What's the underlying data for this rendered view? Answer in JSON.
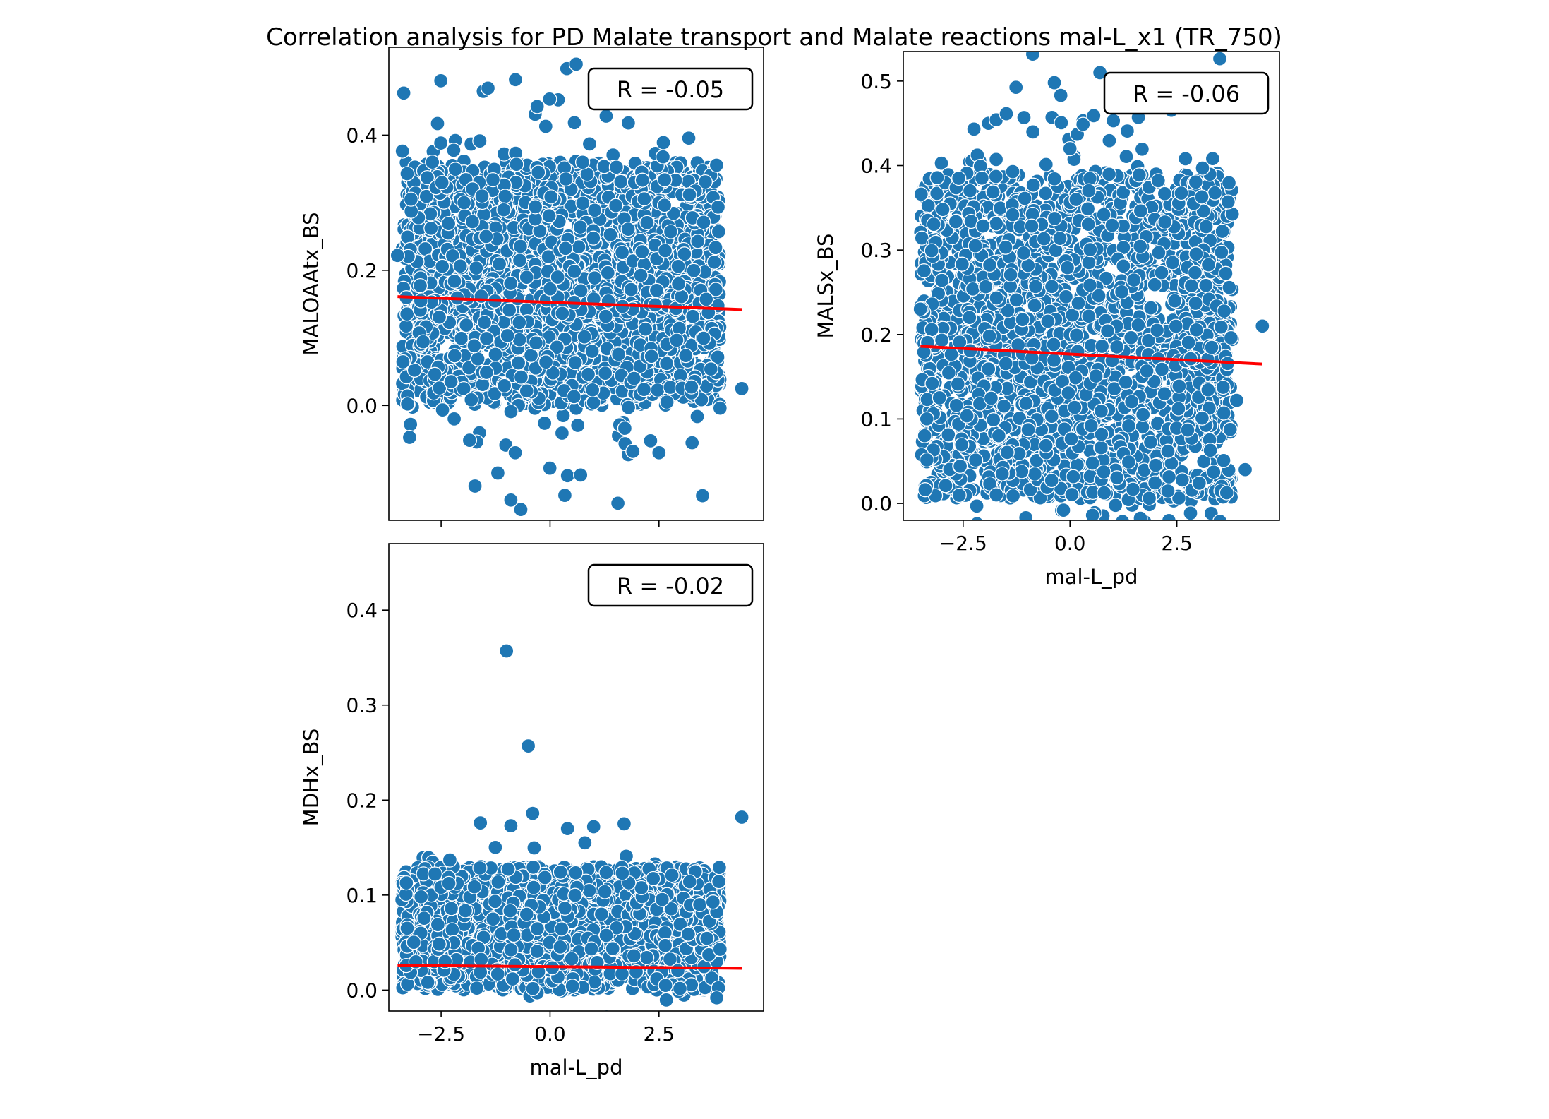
{
  "figure": {
    "title": "Correlation analysis for PD Malate transport and  Malate reactions mal-L_x1 (TR_750)"
  },
  "colors": {
    "points": "#1f77b4",
    "point_edge": "#ffffff",
    "fit_line": "#ff0000",
    "axes": "#000000"
  },
  "chart_data": [
    {
      "type": "scatter",
      "panel": "top-left",
      "title": "",
      "xlabel": "",
      "ylabel": "MALOAAtx_BS",
      "xlim": [
        -3.7,
        4.9
      ],
      "ylim": [
        -0.17,
        0.53
      ],
      "xticks": [
        -2.5,
        0.0,
        2.5
      ],
      "xtick_labels": [
        "−2.5",
        "0.0",
        "2.5"
      ],
      "yticks": [
        0.0,
        0.2,
        0.4
      ],
      "ytick_labels": [
        "0.0",
        "0.2",
        "0.4"
      ],
      "annotation": "R = -0.05",
      "fit_line": {
        "x": [
          -3.5,
          4.4
        ],
        "y": [
          0.161,
          0.142
        ]
      },
      "distribution": {
        "x_min": -3.4,
        "x_max": 3.9,
        "y_low": 0.0,
        "y_high": 0.36,
        "y_spread": 0.07,
        "count": 2600,
        "seed": 11
      },
      "points": [
        {
          "x": 0.6,
          "y": 0.505
        },
        {
          "x": 1.5,
          "y": 0.455
        },
        {
          "x": -0.1,
          "y": 0.413
        },
        {
          "x": 2.6,
          "y": 0.389
        },
        {
          "x": -2.7,
          "y": 0.36
        },
        {
          "x": -1.2,
          "y": -0.1
        },
        {
          "x": -0.9,
          "y": -0.14
        },
        {
          "x": 0.4,
          "y": -0.104
        },
        {
          "x": 0.7,
          "y": -0.103
        },
        {
          "x": 4.4,
          "y": 0.025
        },
        {
          "x": 3.9,
          "y": -0.004
        },
        {
          "x": -3.5,
          "y": 0.222
        },
        {
          "x": 2.5,
          "y": -0.07
        },
        {
          "x": 1.9,
          "y": -0.068
        },
        {
          "x": -0.8,
          "y": -0.07
        },
        {
          "x": 3.2,
          "y": 0.312
        },
        {
          "x": -2.2,
          "y": -0.02
        }
      ]
    },
    {
      "type": "scatter",
      "panel": "top-right",
      "title": "",
      "xlabel": "mal-L_pd",
      "ylabel": "MALSx_BS",
      "xlim": [
        -3.9,
        4.9
      ],
      "ylim": [
        -0.02,
        0.535
      ],
      "xticks": [
        -2.5,
        0.0,
        2.5
      ],
      "xtick_labels": [
        "−2.5",
        "0.0",
        "2.5"
      ],
      "yticks": [
        0.0,
        0.1,
        0.2,
        0.3,
        0.4,
        0.5
      ],
      "ytick_labels": [
        "0.0",
        "0.1",
        "0.2",
        "0.3",
        "0.4",
        "0.5"
      ],
      "annotation": "R = -0.06",
      "fit_line": {
        "x": [
          -3.5,
          4.5
        ],
        "y": [
          0.186,
          0.165
        ]
      },
      "distribution": {
        "x_min": -3.5,
        "x_max": 3.8,
        "y_low": 0.005,
        "y_high": 0.39,
        "y_spread": 0.08,
        "count": 2600,
        "seed": 23
      },
      "points": [
        {
          "x": 0.7,
          "y": 0.51
        },
        {
          "x": 1.6,
          "y": 0.457
        },
        {
          "x": 0.0,
          "y": 0.42
        },
        {
          "x": -3.5,
          "y": 0.23
        },
        {
          "x": 4.5,
          "y": 0.21
        },
        {
          "x": 3.9,
          "y": 0.122
        },
        {
          "x": 3.7,
          "y": 0.357
        },
        {
          "x": 3.1,
          "y": 0.397
        },
        {
          "x": 2.7,
          "y": 0.408
        },
        {
          "x": -2.6,
          "y": 0.385
        },
        {
          "x": 4.1,
          "y": 0.04
        }
      ]
    },
    {
      "type": "scatter",
      "panel": "bottom-left",
      "title": "",
      "xlabel": "mal-L_pd",
      "ylabel": "MDHx_BS",
      "xlim": [
        -3.7,
        4.9
      ],
      "ylim": [
        -0.022,
        0.47
      ],
      "xticks": [
        -2.5,
        0.0,
        2.5
      ],
      "xtick_labels": [
        "−2.5",
        "0.0",
        "2.5"
      ],
      "yticks": [
        0.0,
        0.1,
        0.2,
        0.3,
        0.4
      ],
      "ytick_labels": [
        "0.0",
        "0.1",
        "0.2",
        "0.3",
        "0.4"
      ],
      "annotation": "R = -0.02",
      "fit_line": {
        "x": [
          -3.5,
          4.4
        ],
        "y": [
          0.026,
          0.023
        ]
      },
      "distribution": {
        "x_min": -3.4,
        "x_max": 3.9,
        "y_low": 0.0,
        "y_high": 0.13,
        "y_spread": 0.02,
        "count": 2600,
        "seed": 37
      },
      "points": [
        {
          "x": -1.0,
          "y": 0.357
        },
        {
          "x": -0.5,
          "y": 0.257
        },
        {
          "x": -0.4,
          "y": 0.186
        },
        {
          "x": 4.4,
          "y": 0.182
        },
        {
          "x": -1.6,
          "y": 0.176
        },
        {
          "x": -0.9,
          "y": 0.173
        },
        {
          "x": 0.4,
          "y": 0.17
        },
        {
          "x": 1.0,
          "y": 0.172
        },
        {
          "x": 1.7,
          "y": 0.175
        },
        {
          "x": 0.8,
          "y": 0.155
        },
        {
          "x": -2.3,
          "y": 0.137
        },
        {
          "x": 3.9,
          "y": 0.043
        }
      ]
    }
  ]
}
